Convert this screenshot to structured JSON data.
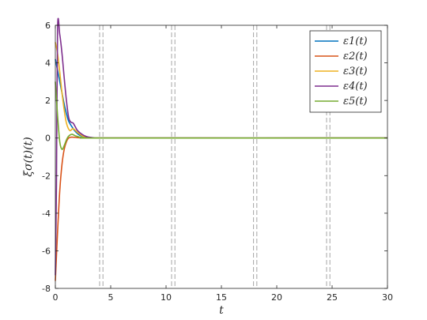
{
  "chart_data": {
    "type": "line",
    "xlabel": "t",
    "ylabel": "ξσ(t)(t)",
    "xlim": [
      0,
      30
    ],
    "ylim": [
      -8,
      6
    ],
    "xticks": [
      "0",
      "5",
      "10",
      "15",
      "20",
      "25",
      "30"
    ],
    "yticks": [
      "6",
      "4",
      "2",
      "0",
      "-2",
      "-4",
      "-6",
      "-8"
    ],
    "grid": false,
    "legend_position": "top-right",
    "switching_times": [
      4.0,
      4.3,
      10.5,
      10.8,
      17.9,
      18.2,
      24.5,
      24.8
    ],
    "switching_line_color": "#a6a6a6",
    "series": [
      {
        "name": "ε1(t)",
        "color": "#0072bd",
        "x": [
          0,
          0.2,
          0.4,
          0.6,
          0.8,
          1.0,
          1.2,
          1.5,
          1.8,
          2.2,
          2.8,
          3.5,
          4.5,
          30
        ],
        "y": [
          4.2,
          3.6,
          3.0,
          2.4,
          1.8,
          1.3,
          0.9,
          0.6,
          0.35,
          0.15,
          0.05,
          0.01,
          0,
          0
        ]
      },
      {
        "name": "ε2(t)",
        "color": "#d95319",
        "x": [
          0,
          0.2,
          0.4,
          0.6,
          0.8,
          1.0,
          1.2,
          1.5,
          2.0,
          2.5,
          3.2,
          4.5,
          30
        ],
        "y": [
          -7.6,
          -5.0,
          -2.8,
          -1.4,
          -0.6,
          -0.2,
          0.0,
          0.05,
          0.02,
          0.01,
          0,
          0,
          0
        ]
      },
      {
        "name": "ε3(t)",
        "color": "#edb120",
        "x": [
          0,
          0.2,
          0.4,
          0.6,
          0.8,
          1.0,
          1.3,
          1.6,
          2.0,
          2.5,
          3.2,
          4.5,
          30
        ],
        "y": [
          5.1,
          4.5,
          3.5,
          2.4,
          1.5,
          0.8,
          0.4,
          0.5,
          0.3,
          0.1,
          0.02,
          0,
          0
        ]
      },
      {
        "name": "ε4(t)",
        "color": "#7e2f8e",
        "x": [
          0,
          0.1,
          0.2,
          0.4,
          0.6,
          0.8,
          1.0,
          1.2,
          1.4,
          1.6,
          1.8,
          2.0,
          2.4,
          2.8,
          3.4,
          4.5,
          30
        ],
        "y": [
          -7.3,
          -2.5,
          5.8,
          5.5,
          4.5,
          3.2,
          2.0,
          1.1,
          0.85,
          0.8,
          0.6,
          0.4,
          0.2,
          0.08,
          0.02,
          0,
          0
        ]
      },
      {
        "name": "ε5(t)",
        "color": "#77ac30",
        "x": [
          0,
          0.2,
          0.4,
          0.6,
          0.8,
          1.0,
          1.2,
          1.5,
          1.8,
          2.2,
          2.8,
          3.5,
          4.5,
          30
        ],
        "y": [
          3.0,
          1.2,
          -0.2,
          -0.6,
          -0.4,
          -0.1,
          0.1,
          0.2,
          0.12,
          0.05,
          0.01,
          0,
          0,
          0
        ]
      }
    ]
  }
}
